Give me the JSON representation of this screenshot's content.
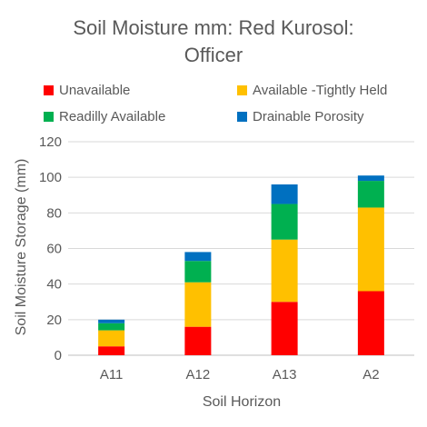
{
  "chart_data": {
    "type": "bar",
    "stacked": true,
    "title_lines": [
      "Soil Moisture mm: Red Kurosol:",
      "Officer"
    ],
    "xlabel": "Soil Horizon",
    "ylabel": "Soil Moisture Storage (mm)",
    "categories": [
      "A11",
      "A12",
      "A13",
      "A2"
    ],
    "ylim": [
      0,
      120
    ],
    "yticks": [
      "0",
      "20",
      "40",
      "60",
      "80",
      "100",
      "120"
    ],
    "grid": true,
    "legend_position": "top",
    "series": [
      {
        "name": "Unavailable",
        "color": "#ff0000",
        "values": [
          5,
          16,
          30,
          36
        ]
      },
      {
        "name": "Available -Tightly Held",
        "color": "#ffc000",
        "values": [
          9,
          25,
          35,
          47
        ]
      },
      {
        "name": "Readilly Available",
        "color": "#00b050",
        "values": [
          4,
          12,
          20,
          15
        ]
      },
      {
        "name": "Drainable Porosity",
        "color": "#0070c0",
        "values": [
          2,
          5,
          11,
          3
        ]
      }
    ]
  }
}
